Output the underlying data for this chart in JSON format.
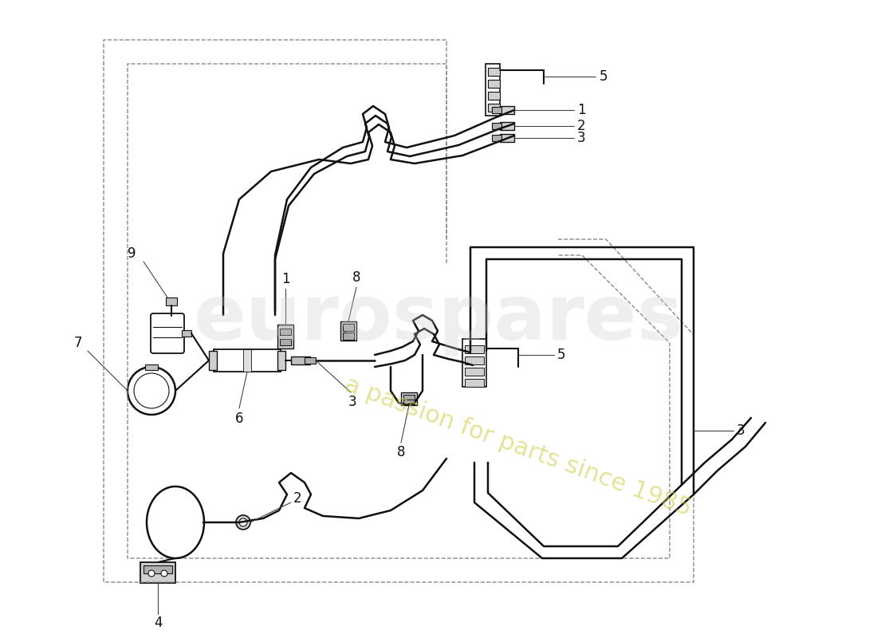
{
  "background_color": "#ffffff",
  "line_color": "#111111",
  "lw_main": 1.8,
  "lw_thin": 1.0,
  "watermark1": "eurospares",
  "watermark2": "a passion for parts since 1985",
  "fig_w": 11.0,
  "fig_h": 8.0
}
